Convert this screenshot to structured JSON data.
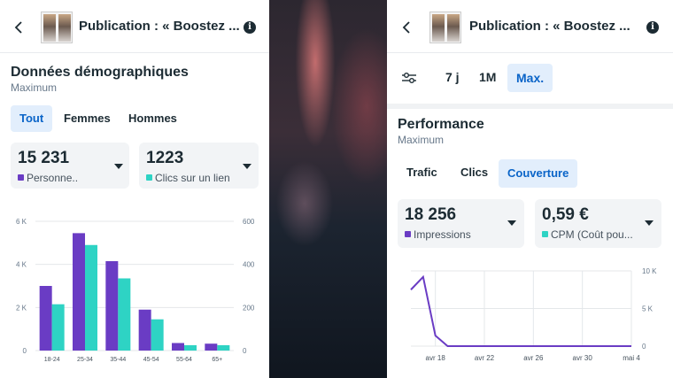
{
  "left": {
    "header_title": "Publication : « Boostez ...",
    "section_title": "Données démographiques",
    "section_subtitle": "Maximum",
    "tabs": [
      "Tout",
      "Femmes",
      "Hommes"
    ],
    "active_tab": 0,
    "metrics": [
      {
        "value": "15 231",
        "label": "Personne..",
        "color": "#6a3cc4"
      },
      {
        "value": "1223",
        "label": "Clics sur un lien",
        "color": "#2ed3c4"
      }
    ]
  },
  "right": {
    "header_title": "Publication : « Boostez ...",
    "range_tabs": [
      "7 j",
      "1M",
      "Max."
    ],
    "active_range": 2,
    "section_title": "Performance",
    "section_subtitle": "Maximum",
    "tabs": [
      "Trafic",
      "Clics",
      "Couverture"
    ],
    "active_tab": 2,
    "metrics": [
      {
        "value": "18 256",
        "label": "Impressions",
        "color": "#6a3cc4"
      },
      {
        "value": "0,59 €",
        "label": "CPM (Coût pou...",
        "color": "#2ed3c4"
      }
    ]
  },
  "colors": {
    "purple": "#6a3cc4",
    "teal": "#2ed3c4",
    "accent": "#0a64c8"
  },
  "chart_data": [
    {
      "type": "bar",
      "categories": [
        "18-24",
        "25-34",
        "35-44",
        "45-54",
        "55-64",
        "65+"
      ],
      "series": [
        {
          "name": "Personne..",
          "axis": "left",
          "values": [
            3000,
            5450,
            4150,
            1900,
            350,
            320
          ]
        },
        {
          "name": "Clics sur un lien",
          "axis": "right",
          "values": [
            215,
            490,
            335,
            145,
            25,
            25
          ]
        }
      ],
      "y_left": {
        "ticks": [
          "0",
          "2 K",
          "4 K",
          "6 K"
        ],
        "range": [
          0,
          6000
        ]
      },
      "y_right": {
        "ticks": [
          "0",
          "200",
          "400",
          "600"
        ],
        "range": [
          0,
          600
        ]
      }
    },
    {
      "type": "line",
      "x": [
        "avr 16",
        "avr 17",
        "avr 18",
        "avr 19",
        "avr 20",
        "avr 21",
        "avr 22",
        "avr 23",
        "avr 24",
        "avr 25",
        "avr 26",
        "avr 27",
        "avr 28",
        "avr 29",
        "avr 30",
        "mai 1",
        "mai 2",
        "mai 3",
        "mai 4"
      ],
      "series": [
        {
          "name": "Impressions",
          "values": [
            7500,
            9200,
            1400,
            0,
            0,
            0,
            0,
            0,
            0,
            0,
            0,
            0,
            0,
            0,
            0,
            0,
            0,
            0,
            0
          ]
        }
      ],
      "x_ticks": [
        "avr 18",
        "avr 22",
        "avr 26",
        "avr 30",
        "mai 4"
      ],
      "y_right": {
        "ticks": [
          "0",
          "5 K",
          "10 K"
        ],
        "range": [
          0,
          10000
        ]
      }
    }
  ]
}
